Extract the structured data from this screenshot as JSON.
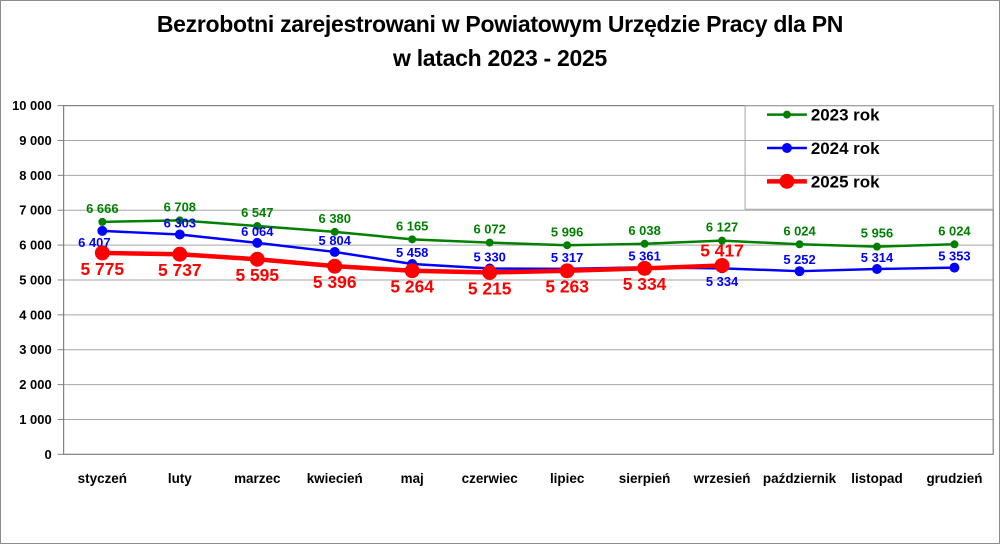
{
  "title": {
    "line1": "Bezrobotni zarejestrowani w Powiatowym Urzędzie Pracy dla PN",
    "line2": "w latach 2023 - 2025"
  },
  "chart_data": {
    "type": "line",
    "title": "Bezrobotni zarejestrowani w Powiatowym Urzędzie Pracy dla PN w latach 2023 - 2025",
    "xlabel": "",
    "ylabel": "",
    "categories": [
      "styczeń",
      "luty",
      "marzec",
      "kwiecień",
      "maj",
      "czerwiec",
      "lipiec",
      "sierpień",
      "wrzesień",
      "październik",
      "listopad",
      "grudzień"
    ],
    "series": [
      {
        "name": "2023 rok",
        "color": "#008000",
        "values": [
          6666,
          6708,
          6547,
          6380,
          6165,
          6072,
          5996,
          6038,
          6127,
          6024,
          5956,
          6024
        ]
      },
      {
        "name": "2024 rok",
        "color": "#0000ff",
        "values": [
          6407,
          6303,
          6064,
          5804,
          5458,
          5330,
          5317,
          5361,
          5334,
          5252,
          5314,
          5353
        ]
      },
      {
        "name": "2025 rok",
        "color": "#ff0000",
        "values": [
          5775,
          5737,
          5595,
          5396,
          5264,
          5215,
          5263,
          5334,
          5417
        ]
      }
    ],
    "ylim": [
      0,
      10000
    ],
    "ytick_step": 1000,
    "ytick_labels": [
      "0",
      "1 000",
      "2 000",
      "3 000",
      "4 000",
      "5 000",
      "6 000",
      "7 000",
      "8 000",
      "9 000",
      "10 000"
    ],
    "grid": "horizontal",
    "data_labels": true,
    "legend_position": "top-right-inside",
    "colors": {
      "gridline": "#a6a6a6",
      "plot_border": "#808080",
      "text": "#000000"
    }
  }
}
